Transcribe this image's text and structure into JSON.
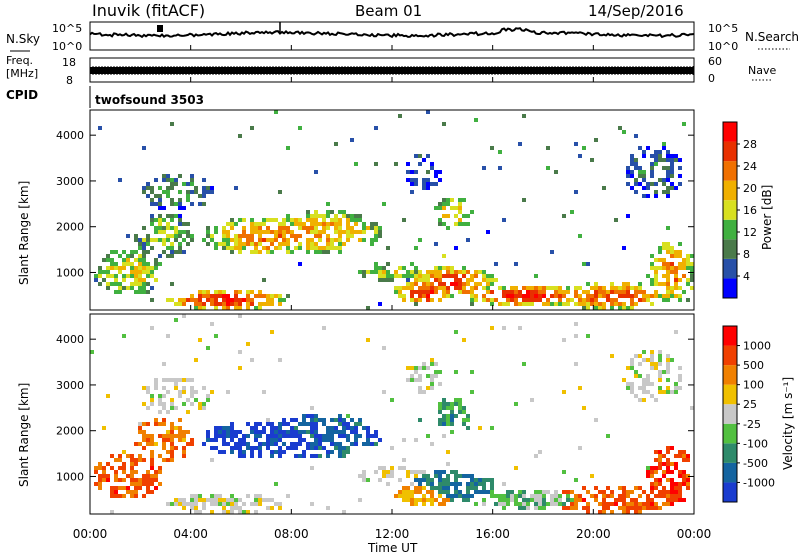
{
  "header": {
    "station": "Inuvik (fitACF)",
    "beam": "Beam 01",
    "date": "14/Sep/2016"
  },
  "top_panels": {
    "nsky_label": "N.Sky",
    "nsky_ticks": [
      "10^5",
      "10^0"
    ],
    "nsearch_label": "N.Search",
    "freq_label_1": "Freq.",
    "freq_label_2": "[MHz]",
    "freq_ticks": [
      "18",
      "8"
    ],
    "nave_label": "Nave",
    "nave_ticks": [
      "60",
      "0"
    ],
    "cpid_label": "CPID",
    "cpid_value": "twofsound 3503"
  },
  "colors": {
    "power_scale": [
      "#0000ff",
      "#2850a8",
      "#4a7a4a",
      "#40b040",
      "#d8e020",
      "#f0b000",
      "#f07000",
      "#e83000",
      "#ff0000"
    ],
    "velocity_scale": [
      "#1a3ccf",
      "#1464a0",
      "#2e8a6a",
      "#52c040",
      "#c8c8c8",
      "#f0c000",
      "#f08000",
      "#f04000",
      "#ff0000"
    ]
  },
  "chart_data": [
    {
      "type": "heatmap",
      "name": "power",
      "xlabel": "",
      "ylabel": "Slant Range [km]",
      "yticks": [
        "1000",
        "2000",
        "3000",
        "4000"
      ],
      "ylim": [
        180,
        4550
      ],
      "colorbar_label": "Power [dB]",
      "colorbar_ticks": [
        "4",
        "8",
        "12",
        "16",
        "20",
        "24",
        "28"
      ],
      "colorbar_range": [
        0,
        30
      ]
    },
    {
      "type": "heatmap",
      "name": "velocity",
      "xlabel": "Time UT",
      "ylabel": "Slant Range [km]",
      "yticks": [
        "1000",
        "2000",
        "3000",
        "4000"
      ],
      "ylim": [
        180,
        4550
      ],
      "x_ticks": [
        "00:00",
        "04:00",
        "08:00",
        "12:00",
        "16:00",
        "20:00",
        "00:00"
      ],
      "colorbar_label": "Velocity [m s⁻¹]",
      "colorbar_ticks": [
        "1000",
        "500",
        "100",
        "25",
        "-25",
        "-100",
        "-500",
        "-1000"
      ]
    }
  ]
}
